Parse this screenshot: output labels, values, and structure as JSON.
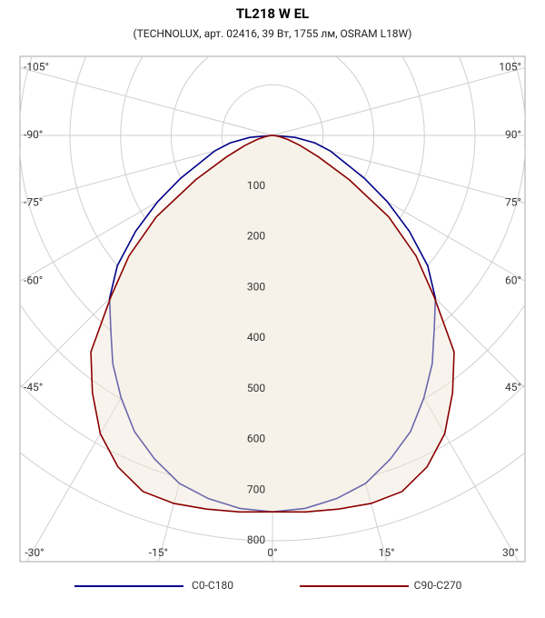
{
  "chart_data": {
    "type": "polar",
    "title": "TL218 W EL",
    "subtitle": "(TECHNOLUX, арт. 02416, 39 Вт, 1755 лм, OSRAM L18W)",
    "x": [
      -90,
      -85,
      -80,
      -75,
      -70,
      -65,
      -60,
      -55,
      -50,
      -45,
      -40,
      -35,
      -30,
      -25,
      -20,
      -15,
      -10,
      -5,
      0,
      5,
      10,
      15,
      20,
      25,
      30,
      35,
      40,
      45,
      50,
      55,
      60,
      65,
      70,
      75,
      80,
      85,
      90
    ],
    "series": [
      {
        "name": "C0-C180",
        "color": "#00008b",
        "values": [
          0,
          45,
          85,
          118,
          148,
          200,
          262,
          330,
          400,
          455,
          497,
          550,
          598,
          645,
          680,
          711,
          728,
          739,
          743,
          739,
          728,
          711,
          680,
          645,
          598,
          550,
          497,
          455,
          400,
          330,
          262,
          200,
          148,
          118,
          85,
          45,
          0
        ]
      },
      {
        "name": "C90-C270",
        "color": "#8b0000",
        "values": [
          0,
          6,
          15,
          32,
          58,
          100,
          175,
          280,
          370,
          452,
          558,
          620,
          680,
          722,
          748,
          752,
          749,
          746,
          743,
          746,
          749,
          752,
          748,
          722,
          680,
          620,
          558,
          452,
          370,
          280,
          175,
          100,
          58,
          32,
          15,
          6,
          0
        ]
      }
    ],
    "ylim": [
      0,
      800
    ],
    "yticks": [
      100,
      200,
      300,
      400,
      500,
      600,
      700,
      800
    ],
    "xticks": [
      {
        "value": -105,
        "label": "-105°"
      },
      {
        "value": -90,
        "label": "-90°"
      },
      {
        "value": -75,
        "label": "-75°"
      },
      {
        "value": -60,
        "label": "-60°"
      },
      {
        "value": -45,
        "label": "-45°"
      },
      {
        "value": -30,
        "label": "-30°"
      },
      {
        "value": -15,
        "label": "-15°"
      },
      {
        "value": 0,
        "label": "0°"
      },
      {
        "value": 15,
        "label": "15°"
      },
      {
        "value": 30,
        "label": "30°"
      },
      {
        "value": 45,
        "label": "45°"
      },
      {
        "value": 60,
        "label": "60°"
      },
      {
        "value": 75,
        "label": "75°"
      },
      {
        "value": 90,
        "label": "90°"
      },
      {
        "value": 105,
        "label": "105°"
      }
    ],
    "grid": true
  }
}
